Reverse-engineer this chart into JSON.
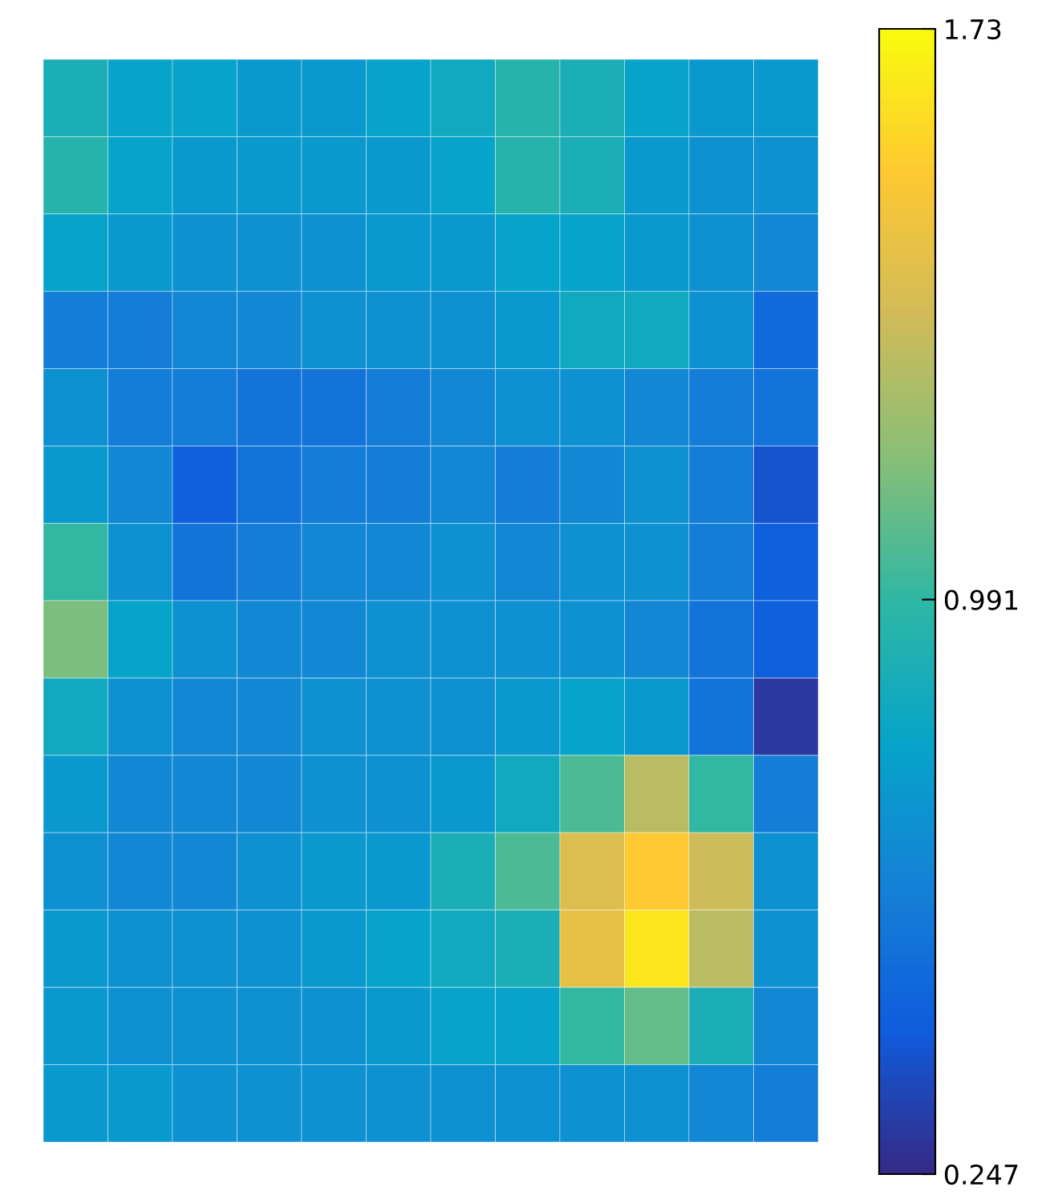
{
  "chart_data": {
    "type": "heatmap",
    "categories": [
      null,
      null,
      null,
      null,
      null,
      null,
      null,
      null,
      null,
      null,
      null,
      null
    ],
    "y_categories": [
      null,
      null,
      null,
      null,
      null,
      null,
      null,
      null,
      null,
      null,
      null,
      null,
      null,
      null
    ],
    "cells": [
      [
        0.9,
        0.8,
        0.8,
        0.75,
        0.75,
        0.8,
        0.85,
        0.95,
        0.9,
        0.8,
        0.75,
        0.75
      ],
      [
        0.95,
        0.8,
        0.75,
        0.75,
        0.75,
        0.75,
        0.8,
        0.95,
        0.9,
        0.75,
        0.7,
        0.7
      ],
      [
        0.8,
        0.75,
        0.7,
        0.7,
        0.7,
        0.75,
        0.75,
        0.8,
        0.8,
        0.75,
        0.7,
        0.65
      ],
      [
        0.6,
        0.6,
        0.65,
        0.65,
        0.7,
        0.7,
        0.7,
        0.75,
        0.85,
        0.85,
        0.7,
        0.5
      ],
      [
        0.7,
        0.6,
        0.6,
        0.55,
        0.55,
        0.6,
        0.65,
        0.7,
        0.7,
        0.65,
        0.6,
        0.55
      ],
      [
        0.75,
        0.65,
        0.45,
        0.55,
        0.6,
        0.6,
        0.65,
        0.6,
        0.65,
        0.7,
        0.6,
        0.4
      ],
      [
        1.0,
        0.7,
        0.55,
        0.6,
        0.65,
        0.65,
        0.7,
        0.65,
        0.7,
        0.7,
        0.6,
        0.45
      ],
      [
        1.15,
        0.8,
        0.7,
        0.65,
        0.65,
        0.7,
        0.7,
        0.7,
        0.7,
        0.65,
        0.55,
        0.45
      ],
      [
        0.85,
        0.7,
        0.65,
        0.65,
        0.7,
        0.7,
        0.7,
        0.75,
        0.8,
        0.75,
        0.55,
        0.3
      ],
      [
        0.75,
        0.65,
        0.65,
        0.65,
        0.7,
        0.7,
        0.75,
        0.85,
        1.05,
        1.3,
        1.0,
        0.6
      ],
      [
        0.7,
        0.65,
        0.65,
        0.7,
        0.75,
        0.75,
        0.9,
        1.05,
        1.4,
        1.55,
        1.35,
        0.7
      ],
      [
        0.75,
        0.7,
        0.7,
        0.7,
        0.75,
        0.8,
        0.85,
        0.9,
        1.45,
        1.65,
        1.3,
        0.7
      ],
      [
        0.75,
        0.7,
        0.7,
        0.7,
        0.7,
        0.75,
        0.8,
        0.8,
        1.0,
        1.1,
        0.9,
        0.65
      ],
      [
        0.75,
        0.75,
        0.7,
        0.7,
        0.7,
        0.7,
        0.7,
        0.7,
        0.7,
        0.7,
        0.65,
        0.6
      ]
    ],
    "clim": [
      0.247,
      1.73
    ],
    "cticks": [
      0.247,
      0.991,
      1.73
    ],
    "tick_labels": false
  }
}
